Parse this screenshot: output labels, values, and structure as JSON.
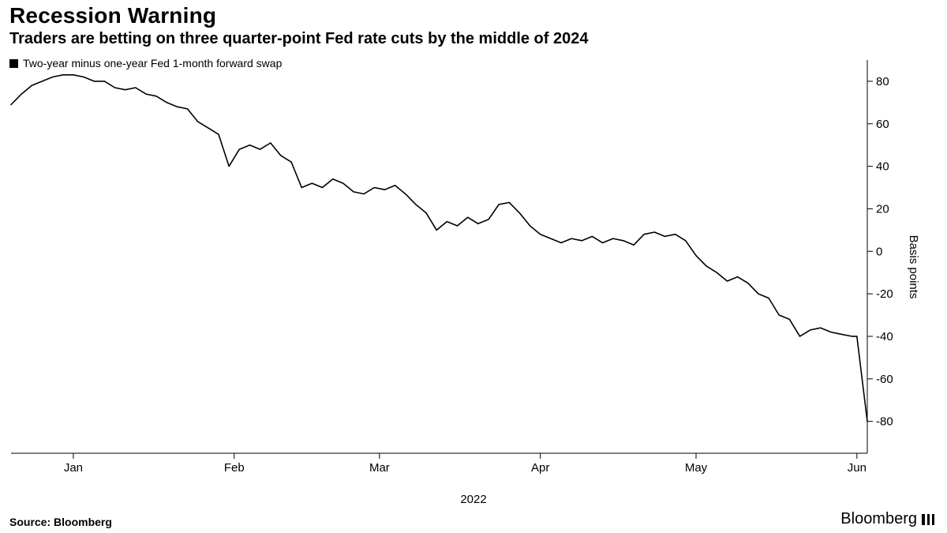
{
  "title": "Recession Warning",
  "subtitle": "Traders are betting on three quarter-point Fed rate cuts by the middle of 2024",
  "legend": {
    "label": "Two-year minus one-year Fed 1-month forward swap",
    "marker_color": "#000000"
  },
  "source": "Source: Bloomberg",
  "brand": "Bloomberg",
  "xaxis_title": "2022",
  "yaxis_title": "Basis points",
  "chart": {
    "type": "line",
    "background_color": "#ffffff",
    "line_color": "#000000",
    "line_width": 1.6,
    "axis_color": "#000000",
    "tick_length": 7,
    "tick_fontsize": 15,
    "y": {
      "min": -95,
      "max": 90,
      "ticks": [
        -80,
        -60,
        -40,
        -20,
        0,
        20,
        40,
        60,
        80
      ],
      "tick_labels": [
        "-80",
        "-60",
        "-40",
        "-20",
        "0",
        "20",
        "40",
        "60",
        "80"
      ]
    },
    "x": {
      "min": 0,
      "max": 165,
      "ticks": [
        12,
        43,
        71,
        102,
        132,
        163
      ],
      "tick_labels": [
        "Jan",
        "Feb",
        "Mar",
        "Apr",
        "May",
        "Jun"
      ]
    },
    "series": [
      {
        "name": "swap_spread",
        "x": [
          0,
          2,
          4,
          6,
          8,
          10,
          12,
          14,
          16,
          18,
          20,
          22,
          24,
          26,
          28,
          30,
          32,
          34,
          36,
          38,
          40,
          42,
          44,
          46,
          48,
          50,
          52,
          54,
          56,
          58,
          60,
          62,
          64,
          66,
          68,
          70,
          72,
          74,
          76,
          78,
          80,
          82,
          84,
          86,
          88,
          90,
          92,
          94,
          96,
          98,
          100,
          102,
          104,
          106,
          108,
          110,
          112,
          114,
          116,
          118,
          120,
          122,
          124,
          126,
          128,
          130,
          132,
          134,
          136,
          138,
          140,
          142,
          144,
          146,
          148,
          150,
          152,
          154,
          156,
          158,
          160,
          162,
          163,
          164,
          165
        ],
        "y": [
          69,
          74,
          78,
          80,
          82,
          83,
          83,
          82,
          80,
          80,
          77,
          76,
          77,
          74,
          73,
          70,
          68,
          67,
          61,
          58,
          55,
          40,
          48,
          50,
          48,
          51,
          45,
          42,
          30,
          32,
          30,
          34,
          32,
          28,
          27,
          30,
          29,
          31,
          27,
          22,
          18,
          10,
          14,
          12,
          16,
          13,
          15,
          22,
          23,
          18,
          12,
          8,
          6,
          4,
          6,
          5,
          7,
          4,
          6,
          5,
          3,
          8,
          9,
          7,
          8,
          5,
          -2,
          -7,
          -10,
          -14,
          -12,
          -15,
          -20,
          -22,
          -30,
          -32,
          -40,
          -37,
          -36,
          -38,
          -39,
          -40,
          -40,
          -60,
          -80
        ]
      }
    ]
  }
}
